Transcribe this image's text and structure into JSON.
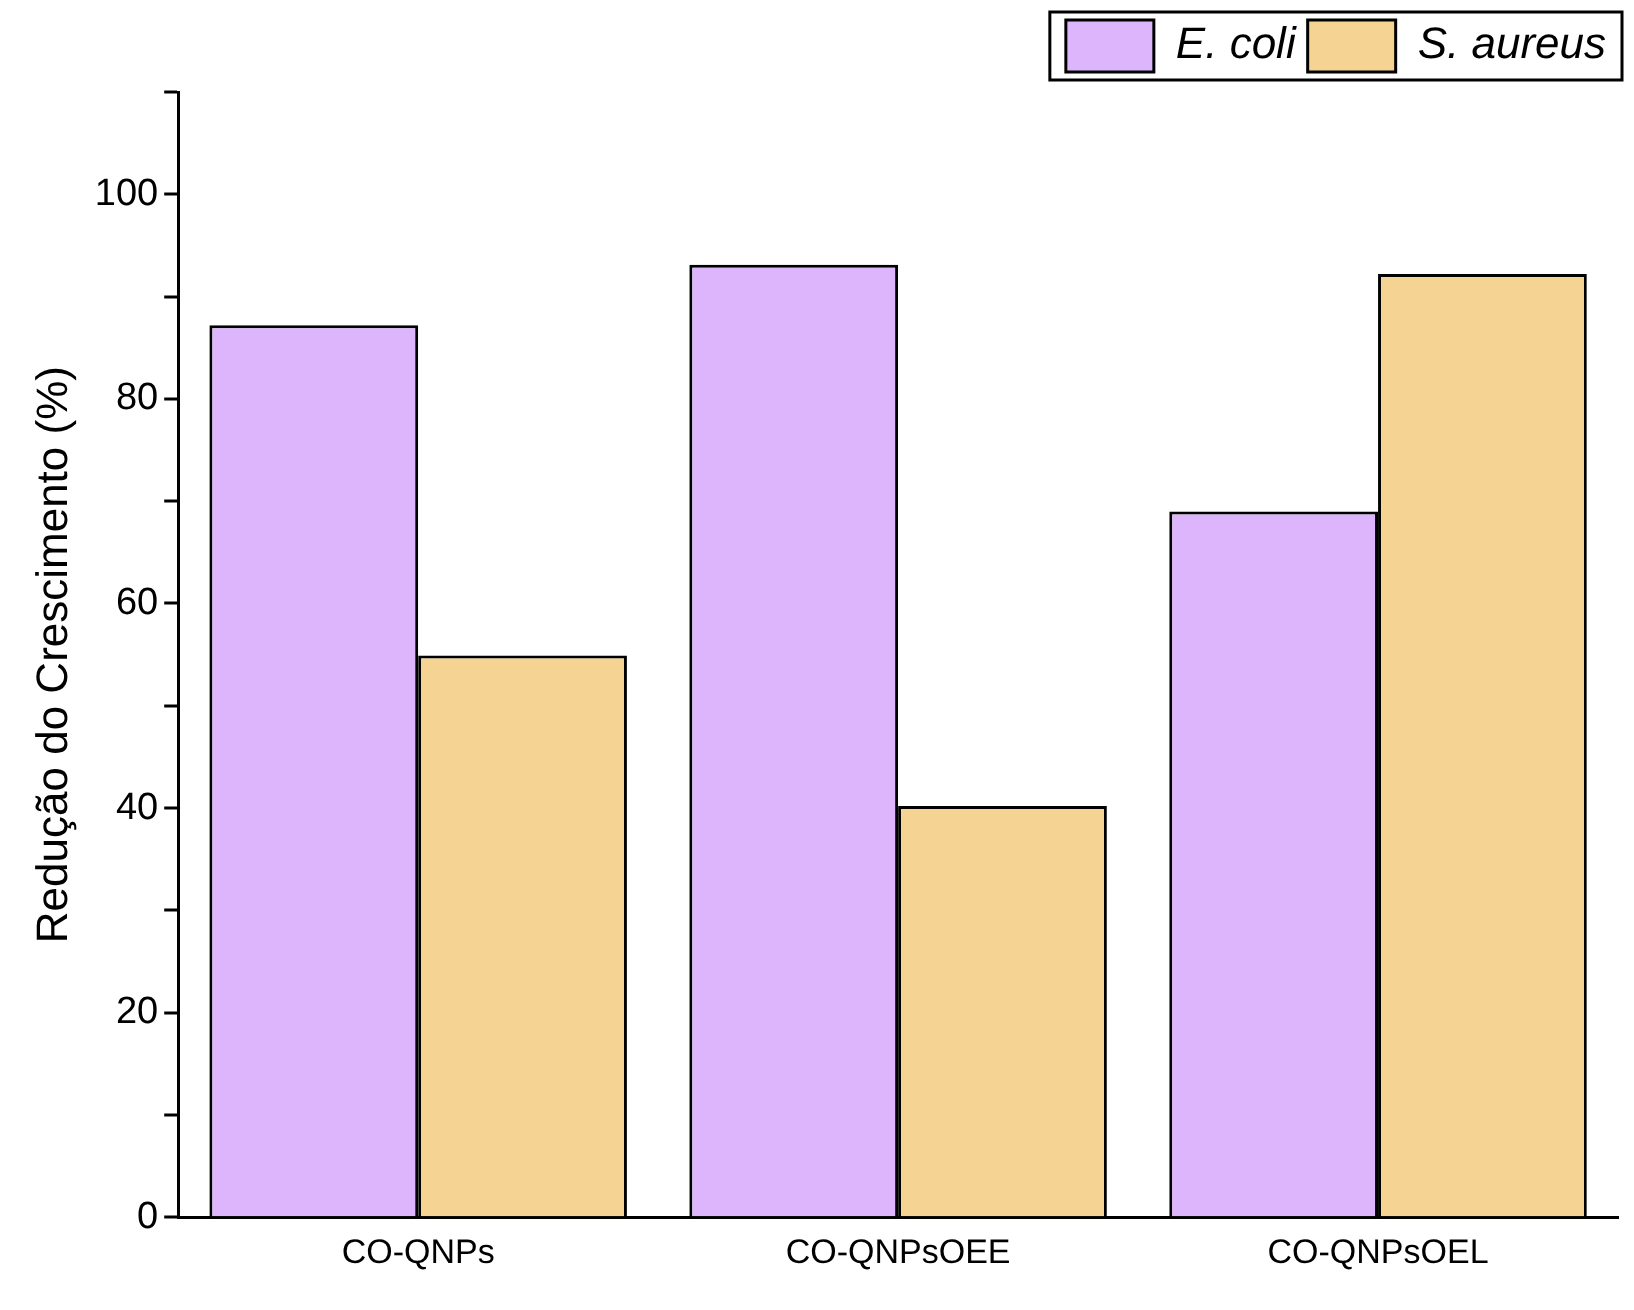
{
  "chart_data": {
    "type": "bar",
    "ylabel": "Redução do Crescimento (%)",
    "categories": [
      "CO-QNPs",
      "CO-QNPsOEE",
      "CO-QNPsOEL"
    ],
    "series": [
      {
        "name": "E. coli",
        "color": "#ddb5fc",
        "values": [
          87.2,
          93.1,
          69.0
        ]
      },
      {
        "name": "S. aureus",
        "color": "#f5d393",
        "values": [
          54.9,
          40.2,
          92.2
        ]
      }
    ],
    "ylim": [
      0,
      110
    ],
    "yticks": [
      0,
      {
        "value": 10,
        "label": null
      },
      20,
      {
        "value": 30,
        "label": null
      },
      40,
      {
        "value": 50,
        "label": null
      },
      60,
      {
        "value": 70,
        "label": null
      },
      80,
      {
        "value": 90,
        "label": null
      },
      100,
      {
        "value": 110,
        "label": null
      }
    ],
    "grid": false,
    "legend": "top right"
  }
}
